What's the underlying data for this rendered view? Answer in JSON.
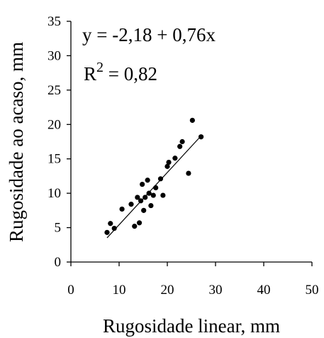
{
  "chart_data": {
    "type": "scatter",
    "xlabel": "Rugosidade linear, mm",
    "ylabel": "Rugosidade ao acaso, mm",
    "xlim": [
      0,
      50
    ],
    "ylim": [
      0,
      35
    ],
    "x_ticks": [
      "0",
      "10",
      "20",
      "30",
      "40",
      "50"
    ],
    "y_ticks": [
      "0",
      "5",
      "10",
      "15",
      "20",
      "25",
      "30",
      "35"
    ],
    "grid": false,
    "equation_text": "y = -2,18 + 0,76x",
    "r2_prefix": "R",
    "r2_exponent": "2",
    "r2_suffix": " = 0,82",
    "trendline": {
      "intercept": -2.18,
      "slope": 0.76,
      "x_range": [
        7.5,
        27.0
      ]
    },
    "points": [
      {
        "x": 7.5,
        "y": 4.3
      },
      {
        "x": 8.2,
        "y": 5.6
      },
      {
        "x": 9.0,
        "y": 4.9
      },
      {
        "x": 10.6,
        "y": 7.7
      },
      {
        "x": 12.5,
        "y": 8.4
      },
      {
        "x": 13.2,
        "y": 5.2
      },
      {
        "x": 13.8,
        "y": 9.4
      },
      {
        "x": 14.2,
        "y": 5.7
      },
      {
        "x": 14.5,
        "y": 8.9
      },
      {
        "x": 14.8,
        "y": 11.3
      },
      {
        "x": 15.1,
        "y": 7.5
      },
      {
        "x": 15.4,
        "y": 9.4
      },
      {
        "x": 15.9,
        "y": 11.9
      },
      {
        "x": 16.2,
        "y": 10.0
      },
      {
        "x": 16.6,
        "y": 8.2
      },
      {
        "x": 17.1,
        "y": 9.7
      },
      {
        "x": 17.6,
        "y": 10.8
      },
      {
        "x": 18.6,
        "y": 12.1
      },
      {
        "x": 19.1,
        "y": 9.7
      },
      {
        "x": 20.0,
        "y": 13.9
      },
      {
        "x": 20.3,
        "y": 14.5
      },
      {
        "x": 21.6,
        "y": 15.1
      },
      {
        "x": 22.6,
        "y": 16.8
      },
      {
        "x": 23.1,
        "y": 17.5
      },
      {
        "x": 24.4,
        "y": 12.9
      },
      {
        "x": 25.2,
        "y": 20.6
      },
      {
        "x": 27.0,
        "y": 18.2
      }
    ]
  }
}
